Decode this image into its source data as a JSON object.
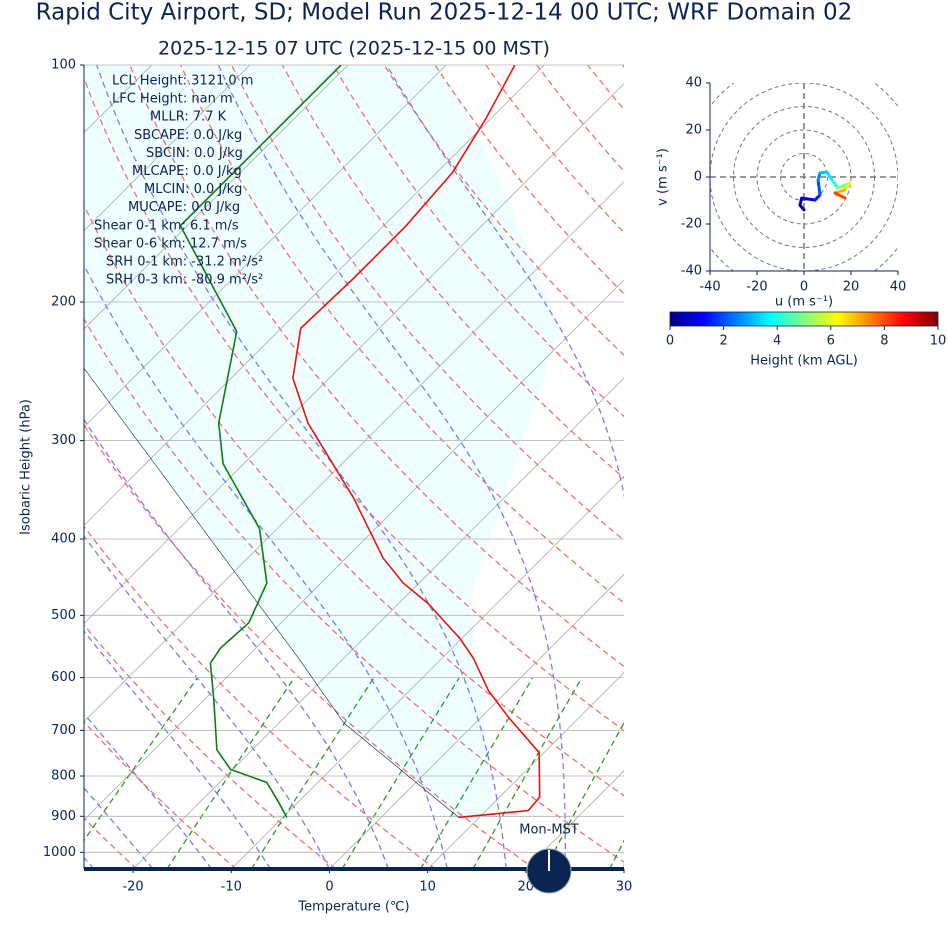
{
  "chart_data": [
    {
      "type": "skewt",
      "title": "Rapid City Airport, SD; Model Run 2025-12-14 00 UTC; WRF Domain 02",
      "subtitle": "2025-12-15 07 UTC  (2025-12-15 00 MST)",
      "xlabel": "Temperature (℃)",
      "ylabel": "Isobaric Height (hPa)",
      "xlim": [
        -25,
        30
      ],
      "ylim": [
        1050,
        100
      ],
      "xticks": [
        -20,
        -10,
        0,
        10,
        20,
        30
      ],
      "yticks": [
        100,
        200,
        300,
        400,
        500,
        600,
        700,
        800,
        900,
        1000
      ],
      "grid": true,
      "time_label": "Mon-MST",
      "parameters": [
        "LCL Height: 3121.0 m",
        "LFC Height: nan m",
        "MLLR: 7.7 K",
        "SBCAPE: 0.0 J/kg",
        "SBCIN: 0.0 J/kg",
        "MLCAPE: 0.0 J/kg",
        "MLCIN: 0.0 J/kg",
        "MUCAPE: 0.0 J/kg",
        "Shear 0-1 km: 6.1 m/s",
        "Shear 0-6 km: 12.7 m/s",
        "SRH 0-1 km: -31.2 m²/s²",
        "SRH 0-3 km: -80.9 m²/s²"
      ],
      "temperature": {
        "color": "#e8150c",
        "pressure": [
          903,
          885,
          851,
          747,
          675,
          624,
          567,
          535,
          483,
          455,
          423,
          355,
          285,
          250,
          216,
          187,
          160,
          137,
          117,
          100
        ],
        "values": [
          7.9,
          14.3,
          14.1,
          9.5,
          2.9,
          -1.9,
          -6.8,
          -10.2,
          -17.0,
          -21.6,
          -26.2,
          -35.3,
          -47.6,
          -53.7,
          -58.0,
          -57.7,
          -57.7,
          -58.4,
          -60.5,
          -63.0
        ]
      },
      "dewpoint": {
        "color": "#0d7d12",
        "pressure": [
          903,
          865,
          815,
          785,
          741,
          637,
          575,
          550,
          511,
          455,
          388,
          321,
          285,
          218,
          160,
          100
        ],
        "values": [
          -9.6,
          -11.9,
          -15.2,
          -20.2,
          -23.6,
          -29.2,
          -33.1,
          -33.6,
          -33.3,
          -35.5,
          -41.8,
          -52.1,
          -56.7,
          -64.2,
          -80.7,
          -80.7
        ]
      },
      "parcel": {
        "color": "#0c2450",
        "pressure": [
          903,
          685,
          567,
          240
        ],
        "values": [
          7.9,
          -13.4,
          -24.6,
          -76.7
        ]
      }
    },
    {
      "type": "hodograph",
      "xlabel": "u (m s⁻¹)",
      "ylabel": "v (m s⁻¹)",
      "xlim": [
        -40,
        40
      ],
      "ylim": [
        -40,
        40
      ],
      "xticks": [
        -40,
        -20,
        0,
        20,
        40
      ],
      "yticks": [
        -40,
        -20,
        0,
        20,
        40
      ],
      "rings": [
        10,
        20,
        30,
        40,
        50
      ],
      "u": [
        0,
        -1.7,
        -1,
        4.7,
        6.8,
        6,
        6.8,
        9.8,
        11.9,
        14.5,
        19.6,
        17.4,
        13.2,
        17.4
      ],
      "v": [
        -14,
        -12,
        -9,
        -9.8,
        -7.7,
        -1.3,
        1.7,
        2.1,
        -1.3,
        -4.7,
        -2.6,
        -5.5,
        -6.8,
        -8.9
      ],
      "height": [
        0,
        0.5,
        1,
        1.5,
        2,
        2.5,
        3,
        3.5,
        4,
        5,
        6,
        7,
        8,
        9
      ],
      "colorbar": {
        "label": "Height (km AGL)",
        "clim": [
          0,
          10
        ],
        "ticks": [
          0,
          2,
          4,
          6,
          8,
          10
        ],
        "colormap": [
          "#00007f",
          "#0000ff",
          "#007fff",
          "#00ffff",
          "#7fff7f",
          "#ffff00",
          "#ff7f00",
          "#ff0000",
          "#7f0000"
        ]
      }
    }
  ]
}
